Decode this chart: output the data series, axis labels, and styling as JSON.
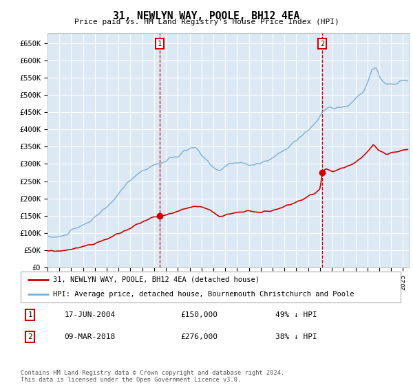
{
  "title": "31, NEWLYN WAY, POOLE, BH12 4EA",
  "subtitle": "Price paid vs. HM Land Registry's House Price Index (HPI)",
  "ylim": [
    0,
    680000
  ],
  "xlim_start": 1995.0,
  "xlim_end": 2025.5,
  "sale1_x": 2004.46,
  "sale1_y": 150000,
  "sale1_label": "1",
  "sale2_x": 2018.19,
  "sale2_y": 276000,
  "sale2_label": "2",
  "legend_property": "31, NEWLYN WAY, POOLE, BH12 4EA (detached house)",
  "legend_hpi": "HPI: Average price, detached house, Bournemouth Christchurch and Poole",
  "annotation1_date": "17-JUN-2004",
  "annotation1_price": "£150,000",
  "annotation1_pct": "49% ↓ HPI",
  "annotation2_date": "09-MAR-2018",
  "annotation2_price": "£276,000",
  "annotation2_pct": "38% ↓ HPI",
  "footnote": "Contains HM Land Registry data © Crown copyright and database right 2024.\nThis data is licensed under the Open Government Licence v3.0.",
  "plot_bg": "#dce9f5",
  "hpi_color": "#7bafd4",
  "sale_color": "#cc0000",
  "marker_box_color": "#cc0000",
  "grid_color": "#ffffff",
  "spine_color": "#aaaaaa"
}
